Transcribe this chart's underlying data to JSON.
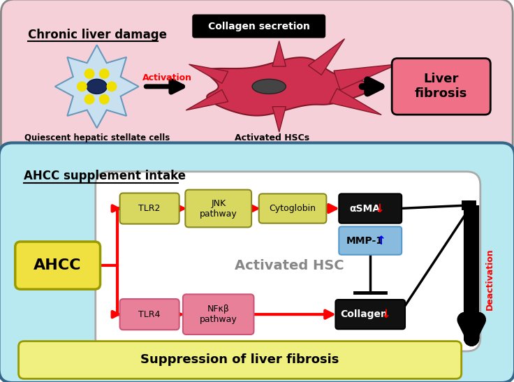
{
  "fig_width": 7.36,
  "fig_height": 5.47,
  "bg_color": "#ffffff",
  "top_panel": {
    "bg_color": "#f5d0d8",
    "title": "Chronic liver damage",
    "collagen_label": "Collagen secretion",
    "activation_label": "Activation",
    "quiescent_label": "Quiescent hepatic stellate cells",
    "activated_label": "Activated HSCs",
    "fibrosis_label": "Liver\nfibrosis",
    "fibrosis_bg": "#f06080"
  },
  "bottom_panel": {
    "bg_color": "#b8e8f0",
    "title": "AHCC supplement intake",
    "ahcc_label": "AHCC",
    "ahcc_bg": "#f0e040",
    "tlr2_label": "TLR2",
    "tlr2_bg": "#d8d860",
    "tlr4_label": "TLR4",
    "tlr4_bg": "#e8809a",
    "jnk_label": "JNK\npathway",
    "jnk_bg": "#d8d860",
    "nfkb_label": "NFκβ\npathway",
    "nfkb_bg": "#e8809a",
    "cytoglobin_label": "Cytoglobin",
    "cytoglobin_bg": "#d8d860",
    "asma_label": "αSMA",
    "asma_bg": "#111111",
    "mmp1_label": "MMP-1",
    "mmp1_bg": "#88bbdd",
    "collagen_label": "Collagen",
    "collagen_bg": "#111111",
    "hsc_label": "Activated HSC",
    "deactivation_label": "Deactivation",
    "suppression_label": "Suppression of liver fibrosis",
    "suppression_bg": "#f0f080"
  }
}
